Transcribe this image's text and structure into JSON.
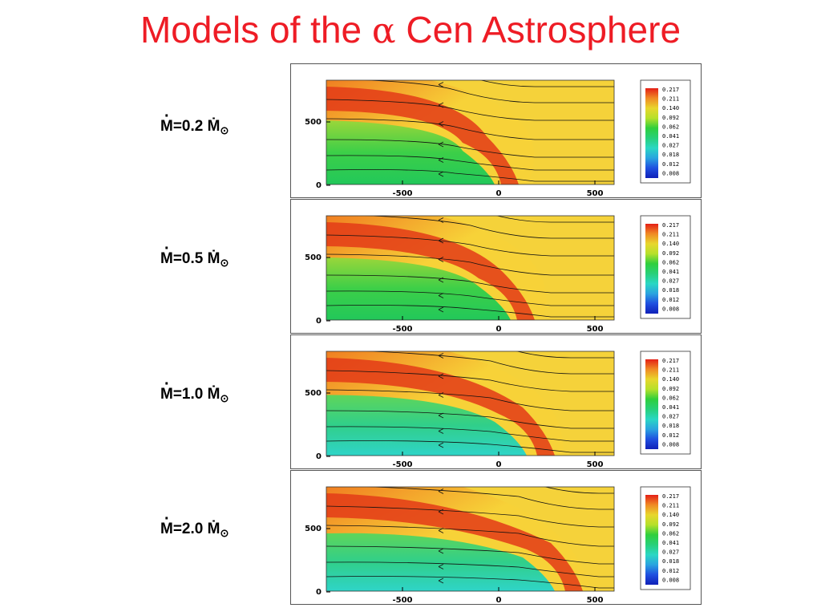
{
  "title": {
    "prefix": "Models of the ",
    "alpha": "α",
    "suffix": " Cen Astrosphere"
  },
  "panels": [
    {
      "label": "=0.2 Ṁ",
      "mdot_num": "0.2"
    },
    {
      "label": "=0.5 Ṁ",
      "mdot_num": "0.5"
    },
    {
      "label": "=1.0 Ṁ",
      "mdot_num": "1.0"
    },
    {
      "label": "=2.0 Ṁ",
      "mdot_num": "2.0"
    }
  ],
  "mdot_symbol": "M",
  "sun_symbol": "⊙",
  "axes": {
    "y_ticks": [
      "500",
      "0"
    ],
    "x_ticks": [
      "-500",
      "0",
      "500"
    ]
  },
  "colorbar": {
    "labels": [
      "0.217",
      "0.211",
      "0.140",
      "0.092",
      "0.062",
      "0.041",
      "0.027",
      "0.018",
      "0.012",
      "0.008"
    ],
    "colors": [
      "#e41f16",
      "#f08a24",
      "#e8d62c",
      "#b6e02a",
      "#2fcf3c",
      "#27d07a",
      "#2ad7c4",
      "#2aa3e0",
      "#1f4fe0",
      "#1020b8"
    ]
  }
}
